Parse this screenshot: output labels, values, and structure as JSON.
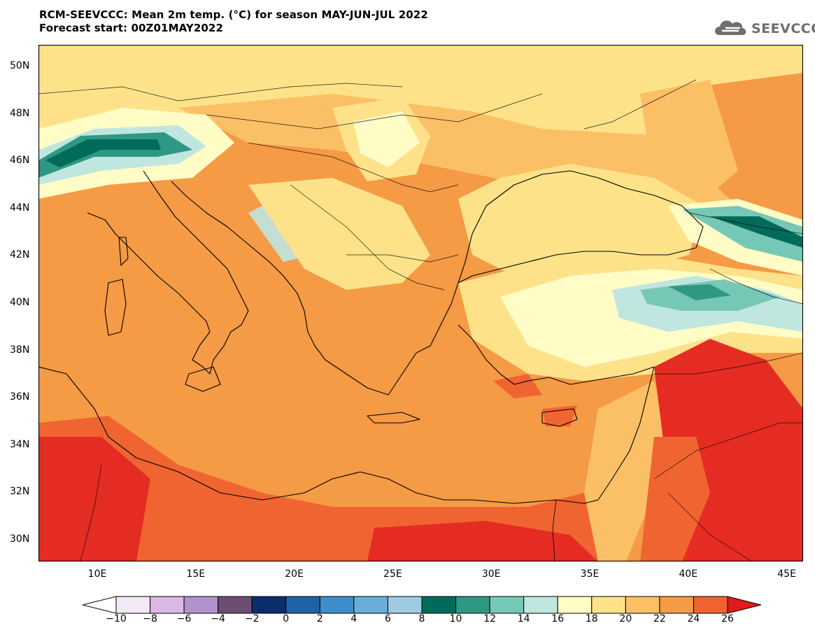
{
  "header": {
    "title_line1": "RCM-SEEVCCC: Mean 2m temp. (°C) for season MAY-JUN-JUL 2022",
    "title_line2": "Forecast start: 00Z01MAY2022",
    "logo_text": "SEEVCCC"
  },
  "map": {
    "lat_labels": [
      "50N",
      "48N",
      "46N",
      "44N",
      "42N",
      "40N",
      "38N",
      "36N",
      "34N",
      "32N",
      "30N"
    ],
    "lon_labels": [
      "10E",
      "15E",
      "20E",
      "25E",
      "30E",
      "35E",
      "40E",
      "45E"
    ]
  },
  "colorbar": {
    "labels": [
      "−10",
      "−8",
      "−6",
      "−4",
      "−2",
      "0",
      "2",
      "4",
      "6",
      "8",
      "10",
      "12",
      "14",
      "16",
      "18",
      "20",
      "22",
      "24",
      "26"
    ],
    "colors": [
      "#f2e8f6",
      "#dbb8e6",
      "#b292cc",
      "#6d4d73",
      "#0c2d6b",
      "#1f62a6",
      "#3f8ecb",
      "#6aaed8",
      "#9ecbe3",
      "#006b5a",
      "#2f9884",
      "#76c8b6",
      "#c0e6e0",
      "#fffcc6",
      "#fde28a",
      "#fbc066",
      "#f59a45",
      "#f06431",
      "#e52c23"
    ],
    "under_color": "#ffffff",
    "over_color": "#e01b1b"
  }
}
